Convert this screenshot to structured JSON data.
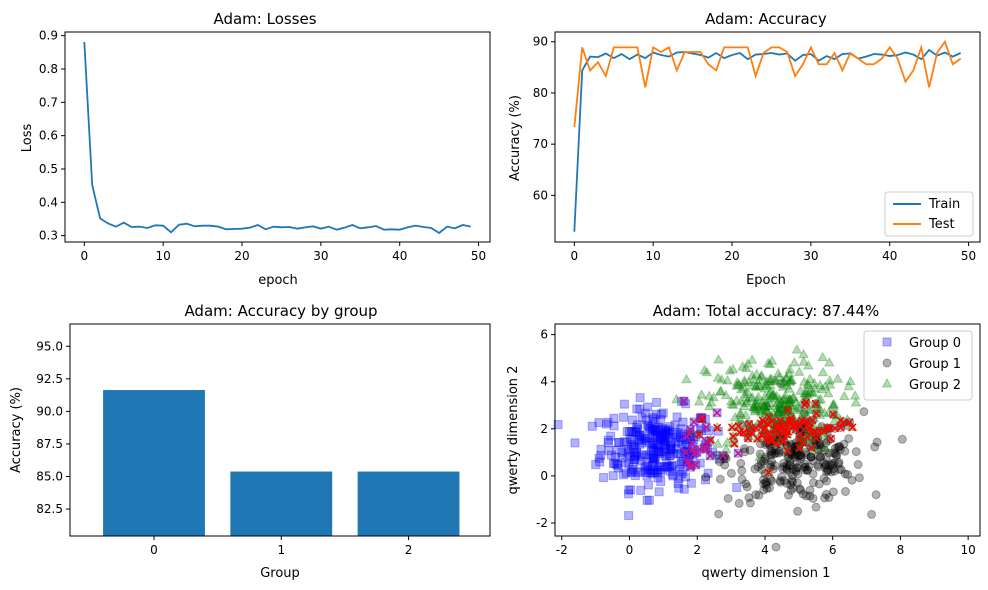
{
  "colors": {
    "blue": "#1f77b4",
    "orange": "#ff7f0e",
    "g0": "#0000ff",
    "g1": "#000000",
    "g2": "#008000",
    "err": "#ff0000"
  },
  "chart_data": [
    {
      "type": "line",
      "title": "Adam: Losses",
      "xlabel": "epoch",
      "ylabel": "Loss",
      "xlim": [
        -2.45,
        51.45
      ],
      "ylim": [
        0.281,
        0.911
      ],
      "xticks": [
        0,
        10,
        20,
        30,
        40,
        50
      ],
      "yticks": [
        0.3,
        0.4,
        0.5,
        0.6,
        0.7,
        0.8,
        0.9
      ],
      "series": [
        {
          "values": [
            0.881,
            0.452,
            0.352,
            0.337,
            0.327,
            0.339,
            0.326,
            0.327,
            0.323,
            0.331,
            0.33,
            0.31,
            0.333,
            0.336,
            0.328,
            0.33,
            0.33,
            0.327,
            0.319,
            0.32,
            0.321,
            0.324,
            0.332,
            0.319,
            0.327,
            0.325,
            0.326,
            0.321,
            0.325,
            0.328,
            0.321,
            0.327,
            0.318,
            0.324,
            0.332,
            0.322,
            0.325,
            0.329,
            0.318,
            0.319,
            0.318,
            0.325,
            0.33,
            0.326,
            0.323,
            0.308,
            0.327,
            0.322,
            0.332,
            0.327
          ]
        }
      ],
      "legend": "none",
      "grid": false
    },
    {
      "type": "line",
      "title": "Adam: Accuracy",
      "xlabel": "Epoch",
      "ylabel": "Accuracy (%)",
      "xlim": [
        -2.45,
        51.45
      ],
      "ylim": [
        50.9,
        91.9
      ],
      "xticks": [
        0,
        10,
        20,
        30,
        40,
        50
      ],
      "yticks": [
        60,
        70,
        80,
        90
      ],
      "legend_position": "lower right",
      "series": [
        {
          "name": "Train",
          "values": [
            52.9,
            84.4,
            87.1,
            87.0,
            87.7,
            86.8,
            87.6,
            86.6,
            87.5,
            86.8,
            87.9,
            87.4,
            87.1,
            87.9,
            88.0,
            87.7,
            87.4,
            86.9,
            87.8,
            86.8,
            87.4,
            87.8,
            86.6,
            87.5,
            87.6,
            87.8,
            87.5,
            87.7,
            86.3,
            87.4,
            87.6,
            86.3,
            87.2,
            86.6,
            87.6,
            87.7,
            86.7,
            87.1,
            87.6,
            87.5,
            87.2,
            87.4,
            87.9,
            87.5,
            86.6,
            88.4,
            87.3,
            87.9,
            87.1,
            87.8
          ]
        },
        {
          "name": "Test",
          "values": [
            73.3,
            88.9,
            84.4,
            86.0,
            83.3,
            88.9,
            88.9,
            88.9,
            88.9,
            81.1,
            88.9,
            88.0,
            88.9,
            84.4,
            88.0,
            88.0,
            88.0,
            85.6,
            84.4,
            88.9,
            88.9,
            88.9,
            88.9,
            83.3,
            87.8,
            88.9,
            88.9,
            88.0,
            83.3,
            85.6,
            88.9,
            85.6,
            85.6,
            87.8,
            84.4,
            87.8,
            86.7,
            85.6,
            85.6,
            86.7,
            88.9,
            86.7,
            82.2,
            84.4,
            88.9,
            81.1,
            87.8,
            90.0,
            85.6,
            86.7
          ]
        }
      ]
    },
    {
      "type": "bar",
      "title": "Adam: Accuracy by group",
      "xlabel": "Group",
      "ylabel": "Accuracy (%)",
      "categories": [
        "0",
        "1",
        "2"
      ],
      "values": [
        91.64,
        85.38,
        85.38
      ],
      "ylim": [
        80.43,
        96.71
      ],
      "yticks": [
        82.5,
        85.0,
        87.5,
        90.0,
        92.5,
        95.0
      ]
    },
    {
      "type": "scatter",
      "title": "Adam: Total accuracy: 87.44%",
      "xlabel": "qwerty dimension 1",
      "ylabel": "qwerty dimension 2",
      "xlim": [
        -2.2,
        10.35
      ],
      "ylim": [
        -2.55,
        6.45
      ],
      "xticks": [
        -2,
        0,
        2,
        4,
        6,
        8,
        10
      ],
      "yticks": [
        -2,
        0,
        2,
        4,
        6
      ],
      "legend_position": "upper right",
      "series": [
        {
          "name": "Group 0",
          "marker": "square",
          "center": [
            0.85,
            1.2
          ],
          "spread": [
            0.85,
            0.85
          ],
          "n": 300
        },
        {
          "name": "Group 1",
          "marker": "circle",
          "center": [
            4.9,
            0.8
          ],
          "spread": [
            1.0,
            0.95
          ],
          "n": 300
        },
        {
          "name": "Group 2",
          "marker": "triangle",
          "center": [
            4.3,
            3.0
          ],
          "spread": [
            1.0,
            1.0
          ],
          "n": 300
        }
      ],
      "misclassified": "x markers (red/purple) in overlap regions"
    }
  ]
}
